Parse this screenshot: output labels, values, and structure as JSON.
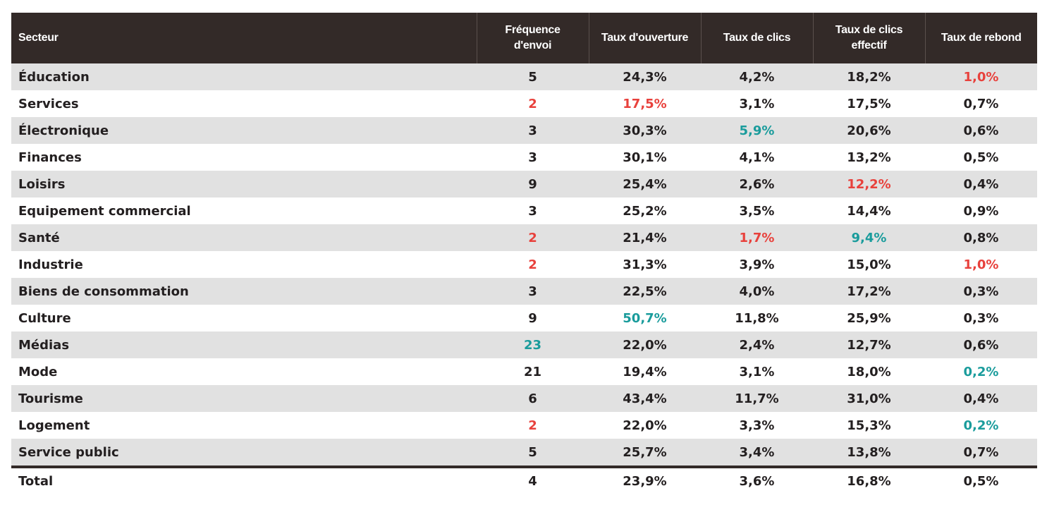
{
  "colors": {
    "header_bg": "#332a28",
    "row_alt_bg": "#e1e1e1",
    "red": "#e8413c",
    "teal": "#1a9c9c"
  },
  "headers": [
    "Secteur",
    "Fréquence\nd'envoi",
    "Taux d'ouverture",
    "Taux de clics",
    "Taux de clics\neffectif",
    "Taux de rebond"
  ],
  "rows": [
    {
      "cells": [
        "Éducation",
        "5",
        "24,3%",
        "4,2%",
        "18,2%",
        "1,0%"
      ],
      "colors": [
        "",
        "",
        "",
        "",
        "",
        "red"
      ]
    },
    {
      "cells": [
        "Services",
        "2",
        "17,5%",
        "3,1%",
        "17,5%",
        "0,7%"
      ],
      "colors": [
        "",
        "red",
        "red",
        "",
        "",
        ""
      ]
    },
    {
      "cells": [
        "Électronique",
        "3",
        "30,3%",
        "5,9%",
        "20,6%",
        "0,6%"
      ],
      "colors": [
        "",
        "",
        "",
        "teal",
        "",
        ""
      ]
    },
    {
      "cells": [
        "Finances",
        "3",
        "30,1%",
        "4,1%",
        "13,2%",
        "0,5%"
      ],
      "colors": [
        "",
        "",
        "",
        "",
        "",
        ""
      ]
    },
    {
      "cells": [
        "Loisirs",
        "9",
        "25,4%",
        "2,6%",
        "12,2%",
        "0,4%"
      ],
      "colors": [
        "",
        "",
        "",
        "",
        "red",
        ""
      ]
    },
    {
      "cells": [
        "Equipement commercial",
        "3",
        "25,2%",
        "3,5%",
        "14,4%",
        "0,9%"
      ],
      "colors": [
        "",
        "",
        "",
        "",
        "",
        ""
      ]
    },
    {
      "cells": [
        "Santé",
        "2",
        "21,4%",
        "1,7%",
        "9,4%",
        "0,8%"
      ],
      "colors": [
        "",
        "red",
        "",
        "red",
        "teal",
        ""
      ]
    },
    {
      "cells": [
        "Industrie",
        "2",
        "31,3%",
        "3,9%",
        "15,0%",
        "1,0%"
      ],
      "colors": [
        "",
        "red",
        "",
        "",
        "",
        "red"
      ]
    },
    {
      "cells": [
        "Biens de consommation",
        "3",
        "22,5%",
        "4,0%",
        "17,2%",
        "0,3%"
      ],
      "colors": [
        "",
        "",
        "",
        "",
        "",
        ""
      ]
    },
    {
      "cells": [
        "Culture",
        "9",
        "50,7%",
        "11,8%",
        "25,9%",
        "0,3%"
      ],
      "colors": [
        "",
        "",
        "teal",
        "",
        "",
        ""
      ]
    },
    {
      "cells": [
        "Médias",
        "23",
        "22,0%",
        "2,4%",
        "12,7%",
        "0,6%"
      ],
      "colors": [
        "",
        "teal",
        "",
        "",
        "",
        ""
      ]
    },
    {
      "cells": [
        "Mode",
        "21",
        "19,4%",
        "3,1%",
        "18,0%",
        "0,2%"
      ],
      "colors": [
        "",
        "",
        "",
        "",
        "",
        "teal"
      ]
    },
    {
      "cells": [
        "Tourisme",
        "6",
        "43,4%",
        "11,7%",
        "31,0%",
        "0,4%"
      ],
      "colors": [
        "",
        "",
        "",
        "",
        "",
        ""
      ]
    },
    {
      "cells": [
        "Logement",
        "2",
        "22,0%",
        "3,3%",
        "15,3%",
        "0,2%"
      ],
      "colors": [
        "",
        "red",
        "",
        "",
        "",
        "teal"
      ]
    },
    {
      "cells": [
        "Service public",
        "5",
        "25,7%",
        "3,4%",
        "13,8%",
        "0,7%"
      ],
      "colors": [
        "",
        "",
        "",
        "",
        "",
        ""
      ]
    }
  ],
  "total": {
    "cells": [
      "Total",
      "4",
      "23,9%",
      "3,6%",
      "16,8%",
      "0,5%"
    ]
  }
}
